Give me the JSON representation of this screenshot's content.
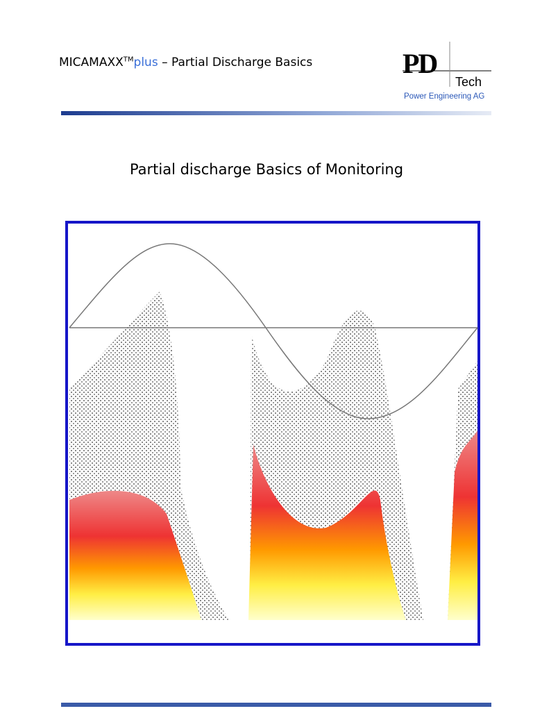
{
  "header": {
    "product": "MICAMAXX",
    "trademark": "TM",
    "plus": "plus",
    "subtitle": "– Partial Discharge Basics"
  },
  "logo": {
    "mark": "PD",
    "tech": "Tech",
    "company": "Power Engineering AG"
  },
  "title": "Partial discharge Basics of Monitoring"
}
